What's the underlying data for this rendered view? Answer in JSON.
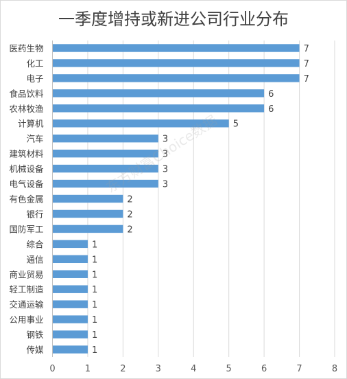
{
  "chart_data": {
    "type": "bar",
    "orientation": "horizontal",
    "title": "一季度增持或新进公司行业分布",
    "categories": [
      "医药生物",
      "化工",
      "电子",
      "食品饮料",
      "农林牧渔",
      "计算机",
      "汽车",
      "建筑材料",
      "机械设备",
      "电气设备",
      "有色金属",
      "银行",
      "国防军工",
      "综合",
      "通信",
      "商业贸易",
      "轻工制造",
      "交通运输",
      "公用事业",
      "钢铁",
      "传媒"
    ],
    "values": [
      7,
      7,
      7,
      6,
      6,
      5,
      3,
      3,
      3,
      3,
      2,
      2,
      2,
      1,
      1,
      1,
      1,
      1,
      1,
      1,
      1
    ],
    "xlim": [
      0,
      8
    ],
    "xticks": [
      "0",
      "1",
      "2",
      "3",
      "4",
      "5",
      "6",
      "7",
      "8"
    ],
    "grid": true,
    "bar_color": "#5b9bd5",
    "data_labels": true
  },
  "watermark": "东方财富Choice数据"
}
